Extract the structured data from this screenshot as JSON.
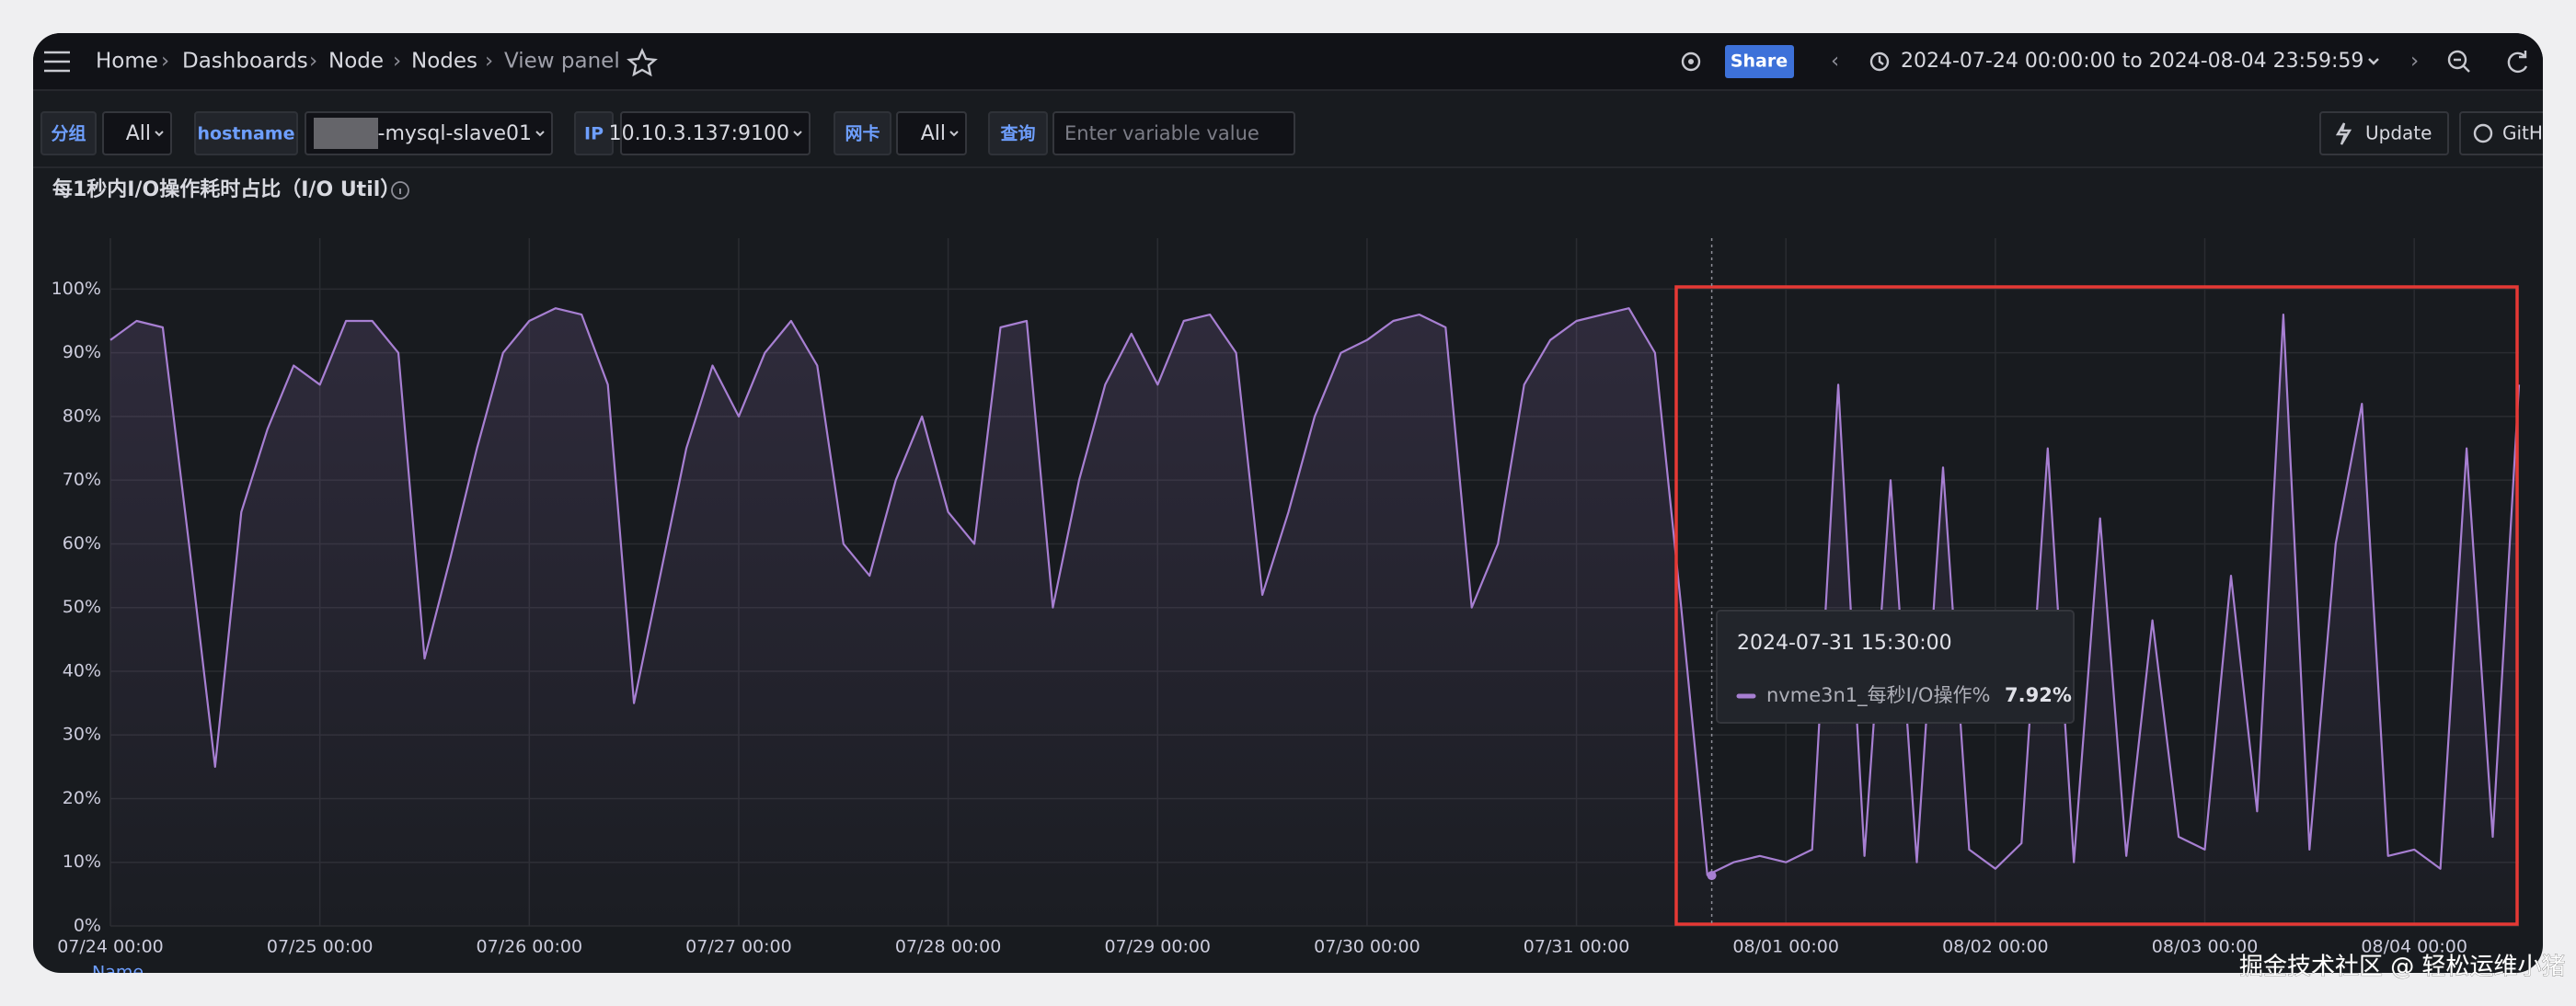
{
  "header": {
    "breadcrumbs": [
      "Home",
      "Dashboards",
      "Node",
      "Nodes",
      "View panel"
    ],
    "share": "Share",
    "time_range": "2024-07-24 00:00:00 to 2024-08-04 23:59:59"
  },
  "variables": [
    {
      "label": "分组",
      "value": "All"
    },
    {
      "label": "hostname",
      "value": "-mysql-slave01"
    },
    {
      "label": "IP",
      "value": "10.10.3.137:9100"
    },
    {
      "label": "网卡",
      "value": "All"
    },
    {
      "label": "查询",
      "placeholder": "Enter variable value"
    }
  ],
  "buttons": {
    "update": "Update",
    "github": "GitHub"
  },
  "chart_data": {
    "type": "line",
    "title": "每1秒内I/O操作耗时占比（I/O Util）",
    "x": [
      "07/24 00:00",
      "07/24 03:00",
      "07/24 06:00",
      "07/24 09:00",
      "07/24 12:00",
      "07/24 15:00",
      "07/24 18:00",
      "07/24 21:00",
      "07/25 00:00",
      "07/25 03:00",
      "07/25 06:00",
      "07/25 09:00",
      "07/25 12:00",
      "07/25 15:00",
      "07/25 18:00",
      "07/25 21:00",
      "07/26 00:00",
      "07/26 03:00",
      "07/26 06:00",
      "07/26 09:00",
      "07/26 12:00",
      "07/26 15:00",
      "07/26 18:00",
      "07/26 21:00",
      "07/27 00:00",
      "07/27 03:00",
      "07/27 06:00",
      "07/27 09:00",
      "07/27 12:00",
      "07/27 15:00",
      "07/27 18:00",
      "07/27 21:00",
      "07/28 00:00",
      "07/28 03:00",
      "07/28 06:00",
      "07/28 09:00",
      "07/28 12:00",
      "07/28 15:00",
      "07/28 18:00",
      "07/28 21:00",
      "07/29 00:00",
      "07/29 03:00",
      "07/29 06:00",
      "07/29 09:00",
      "07/29 12:00",
      "07/29 15:00",
      "07/29 18:00",
      "07/29 21:00",
      "07/30 00:00",
      "07/30 03:00",
      "07/30 06:00",
      "07/30 09:00",
      "07/30 12:00",
      "07/30 15:00",
      "07/30 18:00",
      "07/30 21:00",
      "07/31 00:00",
      "07/31 03:00",
      "07/31 06:00",
      "07/31 09:00",
      "07/31 12:00",
      "07/31 15:00",
      "07/31 18:00",
      "07/31 21:00",
      "08/01 00:00",
      "08/01 03:00",
      "08/01 06:00",
      "08/01 09:00",
      "08/01 12:00",
      "08/01 15:00",
      "08/01 18:00",
      "08/01 21:00",
      "08/02 00:00",
      "08/02 03:00",
      "08/02 06:00",
      "08/02 09:00",
      "08/02 12:00",
      "08/02 15:00",
      "08/02 18:00",
      "08/02 21:00",
      "08/03 00:00",
      "08/03 03:00",
      "08/03 06:00",
      "08/03 09:00",
      "08/03 12:00",
      "08/03 15:00",
      "08/03 18:00",
      "08/03 21:00",
      "08/04 00:00",
      "08/04 03:00",
      "08/04 06:00",
      "08/04 09:00",
      "08/04 12:00"
    ],
    "series": [
      {
        "name": "nvme3n1_每秒I/O操作%",
        "color": "#a77fd2",
        "values": [
          92,
          95,
          94,
          60,
          25,
          65,
          78,
          88,
          85,
          95,
          95,
          90,
          42,
          58,
          75,
          90,
          95,
          97,
          96,
          85,
          35,
          55,
          75,
          88,
          80,
          90,
          95,
          88,
          60,
          55,
          70,
          80,
          65,
          60,
          94,
          95,
          50,
          70,
          85,
          93,
          85,
          95,
          96,
          90,
          52,
          65,
          80,
          90,
          92,
          95,
          96,
          94,
          50,
          60,
          85,
          92,
          95,
          96,
          97,
          90,
          50,
          8,
          10,
          11,
          10,
          12,
          85,
          11,
          70,
          10,
          72,
          12,
          9,
          13,
          75,
          10,
          64,
          11,
          48,
          14,
          12,
          55,
          18,
          96,
          12,
          60,
          82,
          11,
          12,
          9,
          75,
          14,
          85
        ]
      }
    ],
    "xlim": [
      "07/24 00:00",
      "08/04 12:00"
    ],
    "xticks": [
      "07/24 00:00",
      "07/25 00:00",
      "07/26 00:00",
      "07/27 00:00",
      "07/28 00:00",
      "07/29 00:00",
      "07/30 00:00",
      "07/31 00:00",
      "08/01 00:00",
      "08/02 00:00",
      "08/03 00:00",
      "08/04 00:00"
    ],
    "ylim": [
      0,
      108
    ],
    "yticks": [
      {
        "value": 0,
        "label": "0%"
      },
      {
        "value": 10,
        "label": "10%"
      },
      {
        "value": 20,
        "label": "20%"
      },
      {
        "value": 30,
        "label": "30%"
      },
      {
        "value": 40,
        "label": "40%"
      },
      {
        "value": 50,
        "label": "50%"
      },
      {
        "value": 60,
        "label": "60%"
      },
      {
        "value": 70,
        "label": "70%"
      },
      {
        "value": 80,
        "label": "80%"
      },
      {
        "value": 90,
        "label": "90%"
      },
      {
        "value": 100,
        "label": "100%"
      }
    ],
    "grid": true
  },
  "tooltip": {
    "time": "2024-07-31 15:30:00",
    "value": 7.92,
    "value_label": "7.92%"
  },
  "legend_header": "Name",
  "watermark": "掘金技术社区 @ 轻松运维小猪"
}
